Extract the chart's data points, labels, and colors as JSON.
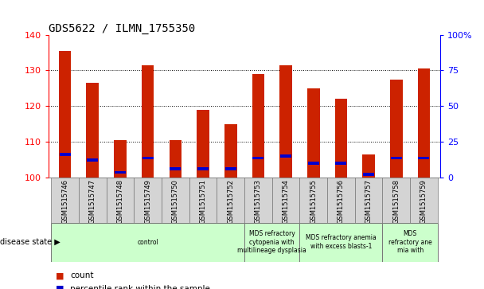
{
  "title": "GDS5622 / ILMN_1755350",
  "samples": [
    "GSM1515746",
    "GSM1515747",
    "GSM1515748",
    "GSM1515749",
    "GSM1515750",
    "GSM1515751",
    "GSM1515752",
    "GSM1515753",
    "GSM1515754",
    "GSM1515755",
    "GSM1515756",
    "GSM1515757",
    "GSM1515758",
    "GSM1515759"
  ],
  "counts": [
    135.5,
    126.5,
    110.5,
    131.5,
    110.5,
    119.0,
    115.0,
    129.0,
    131.5,
    125.0,
    122.0,
    106.5,
    127.5,
    130.5
  ],
  "percentile_values": [
    106.5,
    105.0,
    101.5,
    105.5,
    102.5,
    102.5,
    102.5,
    105.5,
    106.0,
    104.0,
    104.0,
    101.0,
    105.5,
    105.5
  ],
  "ylim": [
    100,
    140
  ],
  "y_left_ticks": [
    100,
    110,
    120,
    130,
    140
  ],
  "y_right_ticks": [
    0,
    25,
    50,
    75,
    100
  ],
  "bar_color": "#cc2200",
  "percentile_color": "#0000cc",
  "disease_groups": [
    {
      "label": "control",
      "start": 0,
      "end": 7
    },
    {
      "label": "MDS refractory\ncytopenia with\nmultilineage dysplasia",
      "start": 7,
      "end": 9
    },
    {
      "label": "MDS refractory anemia\nwith excess blasts-1",
      "start": 9,
      "end": 12
    },
    {
      "label": "MDS\nrefractory ane\nmia with",
      "start": 12,
      "end": 14
    }
  ],
  "disease_state_label": "disease state",
  "legend_count_label": "count",
  "legend_percentile_label": "percentile rank within the sample",
  "cell_bg": "#d4d4d4",
  "disease_bg": "#ccffcc",
  "grid_color": "#000000",
  "bar_width": 0.45
}
